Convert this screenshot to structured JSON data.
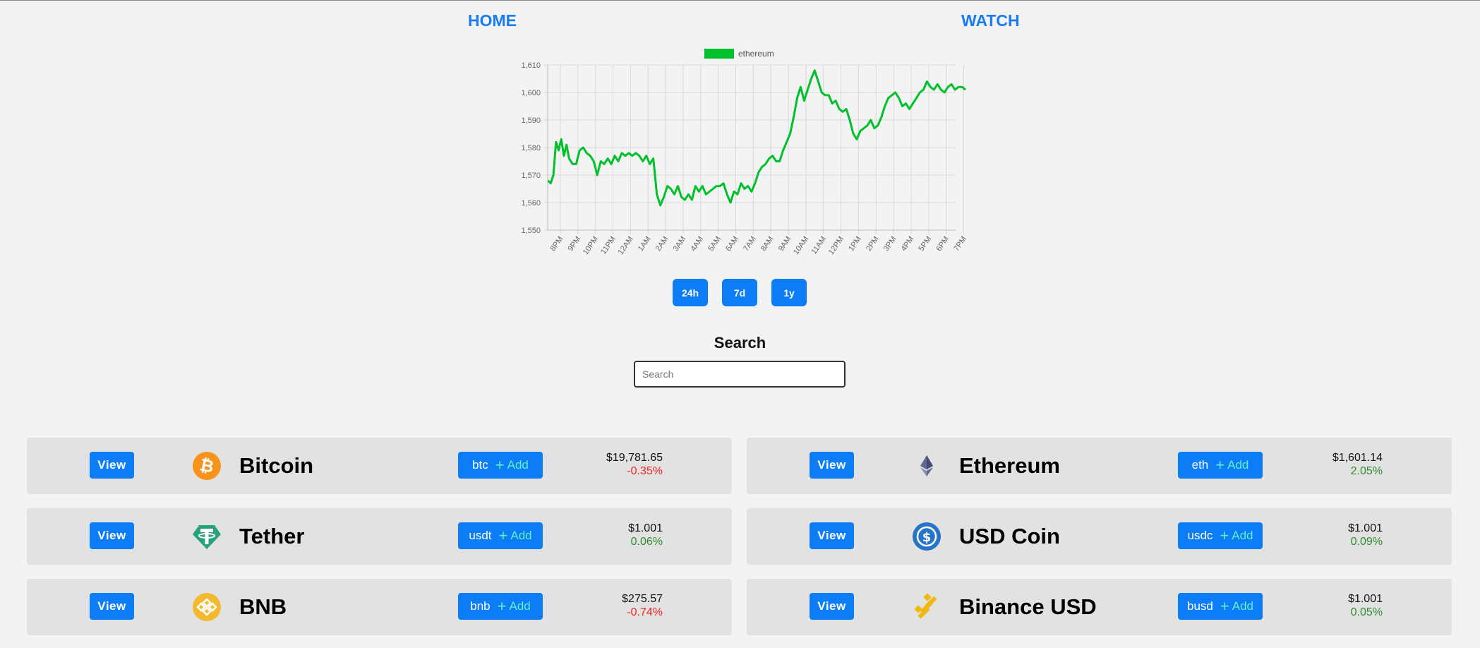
{
  "nav": {
    "home": "HOME",
    "watch": "WATCH"
  },
  "chart_data": {
    "type": "line",
    "legend": "ethereum",
    "series_color": "#00c12b",
    "ylim": [
      1550,
      1610
    ],
    "yticks": [
      "1,550",
      "1,560",
      "1,570",
      "1,580",
      "1,590",
      "1,600",
      "1,610"
    ],
    "yvalues": [
      1550,
      1560,
      1570,
      1580,
      1590,
      1600,
      1610
    ],
    "xticks": [
      "8PM",
      "9PM",
      "10PM",
      "11PM",
      "12AM",
      "1AM",
      "2AM",
      "3AM",
      "4AM",
      "5AM",
      "6AM",
      "7AM",
      "8AM",
      "9AM",
      "10AM",
      "11AM",
      "12PM",
      "1PM",
      "2PM",
      "3PM",
      "4PM",
      "5PM",
      "6PM",
      "7PM"
    ],
    "x_start_hour": 7.3,
    "x_end_hour": 31.1,
    "points": [
      [
        7.3,
        1568
      ],
      [
        7.45,
        1567
      ],
      [
        7.6,
        1570
      ],
      [
        7.75,
        1582
      ],
      [
        7.9,
        1579
      ],
      [
        8.05,
        1583
      ],
      [
        8.2,
        1577
      ],
      [
        8.35,
        1581
      ],
      [
        8.5,
        1576
      ],
      [
        8.7,
        1574
      ],
      [
        8.9,
        1574
      ],
      [
        9.1,
        1579
      ],
      [
        9.3,
        1580
      ],
      [
        9.5,
        1578
      ],
      [
        9.7,
        1577
      ],
      [
        9.9,
        1575
      ],
      [
        10.1,
        1570
      ],
      [
        10.3,
        1575
      ],
      [
        10.5,
        1574
      ],
      [
        10.7,
        1576
      ],
      [
        10.9,
        1574
      ],
      [
        11.1,
        1577
      ],
      [
        11.3,
        1575
      ],
      [
        11.5,
        1578
      ],
      [
        11.7,
        1577
      ],
      [
        11.9,
        1578
      ],
      [
        12.1,
        1577
      ],
      [
        12.3,
        1578
      ],
      [
        12.5,
        1577
      ],
      [
        12.7,
        1575
      ],
      [
        12.9,
        1577
      ],
      [
        13.1,
        1574
      ],
      [
        13.3,
        1576
      ],
      [
        13.5,
        1563
      ],
      [
        13.7,
        1559
      ],
      [
        13.9,
        1562
      ],
      [
        14.1,
        1566
      ],
      [
        14.3,
        1565
      ],
      [
        14.5,
        1563
      ],
      [
        14.7,
        1566
      ],
      [
        14.9,
        1562
      ],
      [
        15.1,
        1561
      ],
      [
        15.3,
        1563
      ],
      [
        15.5,
        1561
      ],
      [
        15.7,
        1566
      ],
      [
        15.9,
        1564
      ],
      [
        16.1,
        1566
      ],
      [
        16.3,
        1563
      ],
      [
        16.5,
        1564
      ],
      [
        16.7,
        1565
      ],
      [
        16.9,
        1566
      ],
      [
        17.1,
        1566
      ],
      [
        17.3,
        1567
      ],
      [
        17.5,
        1563
      ],
      [
        17.7,
        1560
      ],
      [
        17.9,
        1564
      ],
      [
        18.1,
        1563
      ],
      [
        18.3,
        1567
      ],
      [
        18.5,
        1565
      ],
      [
        18.7,
        1566
      ],
      [
        18.9,
        1564
      ],
      [
        19.1,
        1567
      ],
      [
        19.3,
        1571
      ],
      [
        19.5,
        1573
      ],
      [
        19.7,
        1574
      ],
      [
        19.9,
        1576
      ],
      [
        20.1,
        1577
      ],
      [
        20.3,
        1575
      ],
      [
        20.5,
        1575
      ],
      [
        20.7,
        1579
      ],
      [
        20.9,
        1582
      ],
      [
        21.1,
        1585
      ],
      [
        21.3,
        1591
      ],
      [
        21.5,
        1598
      ],
      [
        21.7,
        1602
      ],
      [
        21.9,
        1597
      ],
      [
        22.1,
        1601
      ],
      [
        22.3,
        1605
      ],
      [
        22.5,
        1608
      ],
      [
        22.7,
        1604
      ],
      [
        22.9,
        1600
      ],
      [
        23.1,
        1599
      ],
      [
        23.3,
        1599
      ],
      [
        23.5,
        1596
      ],
      [
        23.7,
        1597
      ],
      [
        23.9,
        1594
      ],
      [
        24.1,
        1593
      ],
      [
        24.3,
        1594
      ],
      [
        24.5,
        1590
      ],
      [
        24.7,
        1585
      ],
      [
        24.9,
        1583
      ],
      [
        25.1,
        1586
      ],
      [
        25.3,
        1587
      ],
      [
        25.5,
        1588
      ],
      [
        25.7,
        1590
      ],
      [
        25.9,
        1587
      ],
      [
        26.1,
        1588
      ],
      [
        26.3,
        1591
      ],
      [
        26.5,
        1595
      ],
      [
        26.7,
        1598
      ],
      [
        26.9,
        1599
      ],
      [
        27.1,
        1600
      ],
      [
        27.3,
        1598
      ],
      [
        27.5,
        1595
      ],
      [
        27.7,
        1596
      ],
      [
        27.9,
        1594
      ],
      [
        28.1,
        1596
      ],
      [
        28.3,
        1598
      ],
      [
        28.5,
        1600
      ],
      [
        28.7,
        1601
      ],
      [
        28.9,
        1604
      ],
      [
        29.1,
        1602
      ],
      [
        29.3,
        1601
      ],
      [
        29.5,
        1603
      ],
      [
        29.7,
        1601
      ],
      [
        29.9,
        1600
      ],
      [
        30.1,
        1602
      ],
      [
        30.3,
        1603
      ],
      [
        30.5,
        1601
      ],
      [
        30.7,
        1602
      ],
      [
        30.9,
        1602
      ],
      [
        31.1,
        1601
      ]
    ]
  },
  "ranges": [
    "24h",
    "7d",
    "1y"
  ],
  "search": {
    "title": "Search",
    "placeholder": "Search"
  },
  "coins": [
    {
      "view": "View",
      "name": "Bitcoin",
      "symbol": "btc",
      "add": "Add",
      "price": "$19,781.65",
      "change": "-0.35%",
      "direction": "down",
      "icon": "bitcoin-icon",
      "color": "#f7931a"
    },
    {
      "view": "View",
      "name": "Ethereum",
      "symbol": "eth",
      "add": "Add",
      "price": "$1,601.14",
      "change": "2.05%",
      "direction": "up",
      "icon": "ethereum-icon",
      "color": "#627eea"
    },
    {
      "view": "View",
      "name": "Tether",
      "symbol": "usdt",
      "add": "Add",
      "price": "$1.001",
      "change": "0.06%",
      "direction": "up",
      "icon": "tether-icon",
      "color": "#26a17b"
    },
    {
      "view": "View",
      "name": "USD Coin",
      "symbol": "usdc",
      "add": "Add",
      "price": "$1.001",
      "change": "0.09%",
      "direction": "up",
      "icon": "usd-coin-icon",
      "color": "#2775ca"
    },
    {
      "view": "View",
      "name": "BNB",
      "symbol": "bnb",
      "add": "Add",
      "price": "$275.57",
      "change": "-0.74%",
      "direction": "down",
      "icon": "bnb-icon",
      "color": "#f3ba2f"
    },
    {
      "view": "View",
      "name": "Binance USD",
      "symbol": "busd",
      "add": "Add",
      "price": "$1.001",
      "change": "0.05%",
      "direction": "up",
      "icon": "binance-usd-icon",
      "color": "#f0b90b"
    }
  ]
}
